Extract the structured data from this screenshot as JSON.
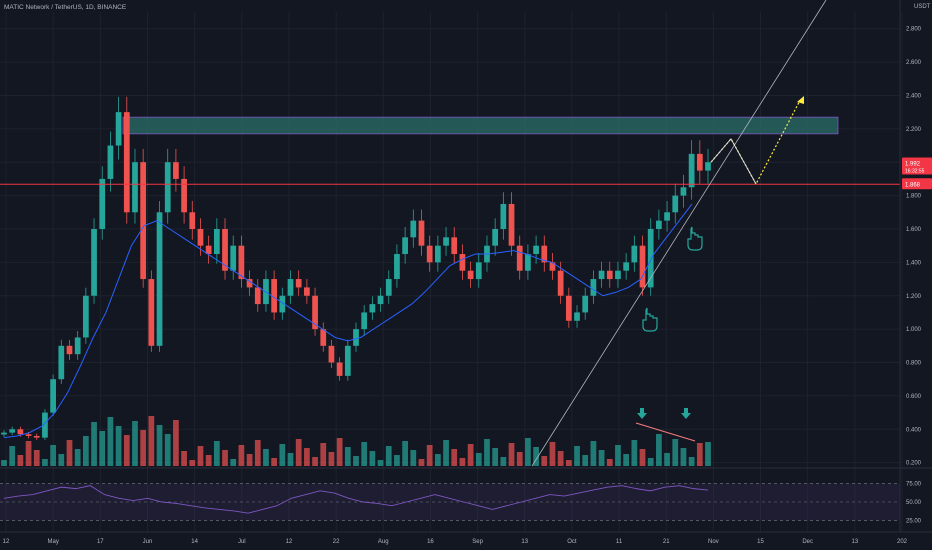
{
  "header": {
    "symbol_title": "MATIC Network / TetherUS, 1D, BINANCE",
    "currency": "USDT"
  },
  "colors": {
    "background": "#131722",
    "grid": "#1e222d",
    "up": "#26a69a",
    "down": "#ef5350",
    "ma": "#2962ff",
    "rsi": "#7e57c2",
    "resistance_zone": "#2a6f6a",
    "last_price": "#f23645",
    "projection": "#ffeb3b"
  },
  "chart_data": {
    "type": "candlestick",
    "price_axis": {
      "ticks": [
        "2.800",
        "2.600",
        "2.400",
        "2.200",
        "2.000",
        "1.800",
        "1.600",
        "1.400",
        "1.200",
        "1.000",
        "0.800",
        "0.600",
        "0.400",
        "0.200"
      ],
      "ylim": [
        0.18,
        2.9
      ]
    },
    "time_axis": {
      "ticks": [
        "12",
        "May",
        "17",
        "Jun",
        "14",
        "Jul",
        "12",
        "22",
        "Aug",
        "16",
        "Sep",
        "13",
        "Oct",
        "11",
        "21",
        "Nov",
        "15",
        "Dec",
        "13",
        "202"
      ]
    },
    "price_labels": [
      {
        "value": 1.992,
        "label": "1.992",
        "sub": "16:32:55"
      },
      {
        "value": 1.868,
        "label": "1.868"
      }
    ],
    "resistance_zone": {
      "low": 2.17,
      "high": 2.27
    },
    "horizontal_line": 1.868,
    "trendline": {
      "from": [
        "Sep 13",
        0.2
      ],
      "to": [
        "Dec 8",
        3.0
      ]
    },
    "projection_path": [
      [
        "Nov 3",
        2.0
      ],
      [
        "Nov 7",
        2.14
      ],
      [
        "Nov 14",
        1.87
      ],
      [
        "Nov 22",
        2.37
      ]
    ],
    "series": [
      {
        "name": "candles",
        "values": [
          0.38,
          0.4,
          0.37,
          0.36,
          0.35,
          0.5,
          0.7,
          0.9,
          0.85,
          0.95,
          1.2,
          1.6,
          1.9,
          2.1,
          2.3,
          1.7,
          2.0,
          1.3,
          0.9,
          1.7,
          2.0,
          1.9,
          1.7,
          1.6,
          1.5,
          1.45,
          1.6,
          1.35,
          1.5,
          1.3,
          1.25,
          1.15,
          1.3,
          1.1,
          1.2,
          1.3,
          1.25,
          1.2,
          1.0,
          0.9,
          0.8,
          0.72,
          0.9,
          1.0,
          1.1,
          1.15,
          1.2,
          1.3,
          1.45,
          1.55,
          1.65,
          1.5,
          1.4,
          1.5,
          1.55,
          1.45,
          1.35,
          1.3,
          1.4,
          1.5,
          1.6,
          1.75,
          1.5,
          1.35,
          1.45,
          1.5,
          1.4,
          1.35,
          1.2,
          1.05,
          1.1,
          1.2,
          1.3,
          1.35,
          1.3,
          1.35,
          1.4,
          1.5,
          1.25,
          1.6,
          1.65,
          1.7,
          1.8,
          1.85,
          2.05,
          1.95,
          2.0
        ]
      },
      {
        "name": "ma",
        "values": [
          0.35,
          0.36,
          0.38,
          0.42,
          0.5,
          0.62,
          0.78,
          0.95,
          1.1,
          1.3,
          1.5,
          1.62,
          1.65,
          1.6,
          1.55,
          1.5,
          1.45,
          1.4,
          1.35,
          1.3,
          1.25,
          1.2,
          1.15,
          1.1,
          1.05,
          1.0,
          0.95,
          0.93,
          0.95,
          1.0,
          1.05,
          1.1,
          1.15,
          1.22,
          1.3,
          1.38,
          1.42,
          1.45,
          1.45,
          1.46,
          1.47,
          1.45,
          1.42,
          1.4,
          1.35,
          1.3,
          1.25,
          1.2,
          1.22,
          1.25,
          1.3,
          1.45,
          1.55,
          1.65,
          1.75
        ]
      },
      {
        "name": "rsi",
        "values": [
          55,
          58,
          60,
          65,
          70,
          68,
          72,
          60,
          55,
          52,
          55,
          50,
          48,
          45,
          42,
          40,
          38,
          35,
          40,
          45,
          55,
          60,
          65,
          62,
          55,
          50,
          48,
          45,
          50,
          55,
          60,
          55,
          50,
          45,
          40,
          45,
          50,
          55,
          60,
          58,
          62,
          66,
          70,
          72,
          68,
          65,
          70,
          72,
          68,
          66
        ]
      }
    ],
    "rsi_axis": {
      "ticks": [
        "75.00",
        "50.00",
        "25.00"
      ],
      "ylim": [
        15,
        85
      ]
    },
    "volume_markers": [
      "down-arrow",
      "down-arrow"
    ],
    "annotations": [
      "hand-pointer",
      "hand-pointer"
    ]
  }
}
